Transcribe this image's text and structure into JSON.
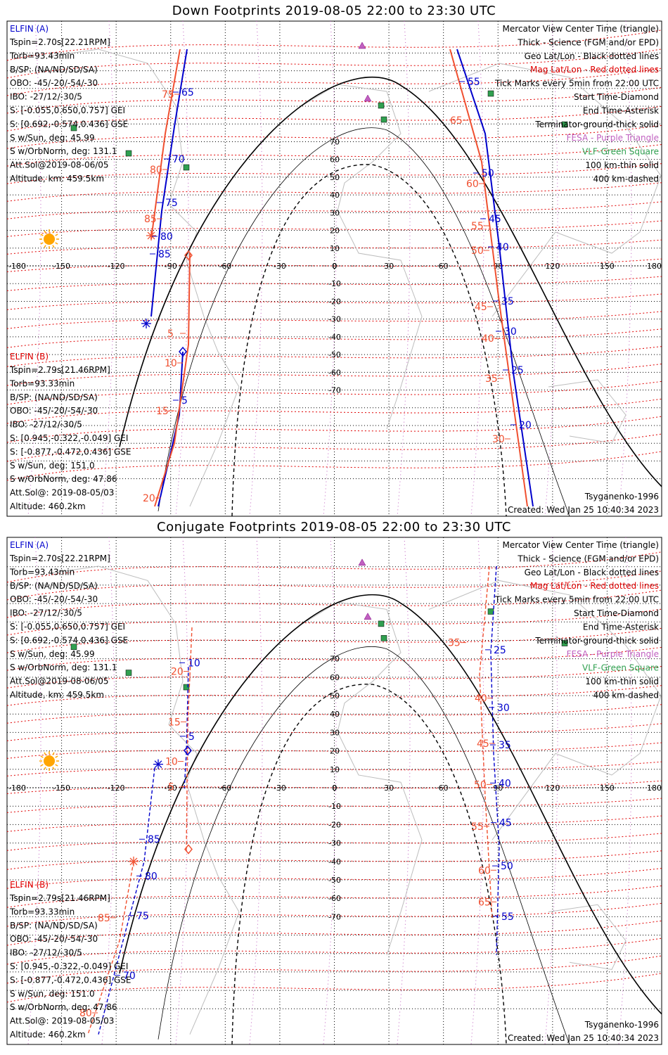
{
  "colors": {
    "elfin_a": "#0000cc",
    "elfin_b": "#f05030",
    "mag_grid": "#e00000",
    "geo_grid": "#000000",
    "fesa": "#c060c0",
    "vlf": "#30a050",
    "sun": "#ffa500"
  },
  "panels": [
    {
      "title": "Down Footprints 2019-08-05 22:00 to 23:30 UTC",
      "elfin_a": {
        "name": "ELFIN (A)",
        "lines": [
          "Tspin=2.70s[22.21RPM]",
          "Torb=93.43min",
          "B/SP: (NA/ND/SD/SA)",
          "OBO: -45/-20/-54/-30",
          "IBO: -27/12/-30/5",
          "S: [-0.055,0.650,0.757] GEI",
          "S: [0.692,-0.574,0.436] GSE",
          "S w/Sun, deg: 45.99",
          "S w/OrbNorm, deg: 131.1",
          "Att.Sol@2019-08-06/05",
          "Altitude, km: 459.5km"
        ]
      },
      "elfin_b": {
        "name": "ELFIN (B)",
        "lines": [
          "Tspin=2.79s[21.46RPM]",
          "Torb=93.33min",
          "B/SP: (NA/ND/SD/SA)",
          "OBO: -45/-20/-54/-30",
          "IBO: -27/12/-30/5",
          "S: [0.945,-0.322,-0.049] GEI",
          "S: [-0.877,-0.472,0.436] GSE",
          "S w/Sun, deg: 151.0",
          "S w/OrbNorm, deg: 47.86",
          "Att.Sol@: 2019-08-05/03",
          "Altitude: 460.2km"
        ]
      },
      "legend": [
        "Mercator View Center Time (triangle)",
        "Thick - Science (FGM and/or EPD)",
        "Geo Lat/Lon - Black dotted lines",
        "Mag Lat/Lon - Red dotted lines",
        "Tick Marks every 5min from 22:00 UTC",
        "Start Time-Diamond",
        "End Time-Asterisk",
        "Terminator-ground-thick solid",
        "FESA - Purple Triangle",
        "VLF-Green Square",
        "100 km-thin solid",
        "400 km-dashed"
      ],
      "model": "Tsyganenko-1996",
      "created": "Created: Wed Jan 25 10:40:34 2023",
      "a_ticks": [
        "65",
        "70",
        "75",
        "80",
        "85",
        "20",
        "15",
        "10",
        "5",
        "50",
        "45",
        "40",
        "35",
        "30",
        "25",
        "20",
        "55"
      ],
      "b_ticks": [
        "75",
        "80",
        "85",
        "5",
        "10",
        "15",
        "20",
        "65",
        "60",
        "55",
        "50",
        "45",
        "40",
        "35",
        "30"
      ]
    },
    {
      "title": "Conjugate Footprints 2019-08-05 22:00 to 23:30 UTC",
      "elfin_a": {
        "name": "ELFIN (A)",
        "lines": [
          "Tspin=2.70s[22.21RPM]",
          "Torb=93.43min",
          "B/SP: (NA/ND/SD/SA)",
          "OBO: -45/-20/-54/-30",
          "IBO: -27/12/-30/5",
          "S: [-0.055,0.650,0.757] GEI",
          "S: [0.692,-0.574,0.436] GSE",
          "S w/Sun, deg: 45.99",
          "S w/OrbNorm, deg: 131.1",
          "Att.Sol@2019-08-06/05",
          "Altitude, km: 459.5km"
        ]
      },
      "elfin_b": {
        "name": "ELFIN (B)",
        "lines": [
          "Tspin=2.79s[21.46RPM]",
          "Torb=93.33min",
          "B/SP: (NA/ND/SD/SA)",
          "OBO: -45/-20/-54/-30",
          "IBO: -27/12/-30/5",
          "S: [0.945,-0.322,-0.049] GEI",
          "S: [-0.877,-0.472,0.436] GSE",
          "S w/Sun, deg: 151.0",
          "S w/OrbNorm, deg: 47.86",
          "Att.Sol@: 2019-08-05/03",
          "Altitude: 460.2km"
        ]
      },
      "legend": [
        "Mercator View Center Time (triangle)",
        "Thick - Science (FGM and/or EPD)",
        "Geo Lat/Lon - Black dotted lines",
        "Mag Lat/Lon - Red dotted lines",
        "Tick Marks every 5min from 22:00 UTC",
        "Start Time-Diamond",
        "End Time-Asterisk",
        "Terminator-ground-thick solid",
        "FESA - Purple Triangle",
        "VLF-Green Square",
        "100 km-thin solid",
        "400 km-dashed"
      ],
      "model": "Tsyganenko-1996",
      "created": "Created: Wed Jan 25 10:40:34 2023",
      "a_ticks": [
        "10",
        "5",
        "85",
        "80",
        "75",
        "70",
        "25",
        "30",
        "35",
        "40",
        "45",
        "50",
        "55"
      ],
      "b_ticks": [
        "20",
        "15",
        "10",
        "5",
        "35",
        "40",
        "45",
        "50",
        "55",
        "60",
        "65",
        "80",
        "85"
      ]
    }
  ],
  "lon_labels": [
    "-180",
    "-150",
    "-120",
    "-90",
    "-60",
    "-30",
    "0",
    "30",
    "60",
    "90",
    "120",
    "150",
    "180"
  ],
  "lat_labels": [
    "70",
    "60",
    "50",
    "40",
    "30",
    "20",
    "10",
    "0",
    "-10",
    "-20",
    "-30",
    "-40",
    "-50",
    "-60",
    "-70"
  ]
}
